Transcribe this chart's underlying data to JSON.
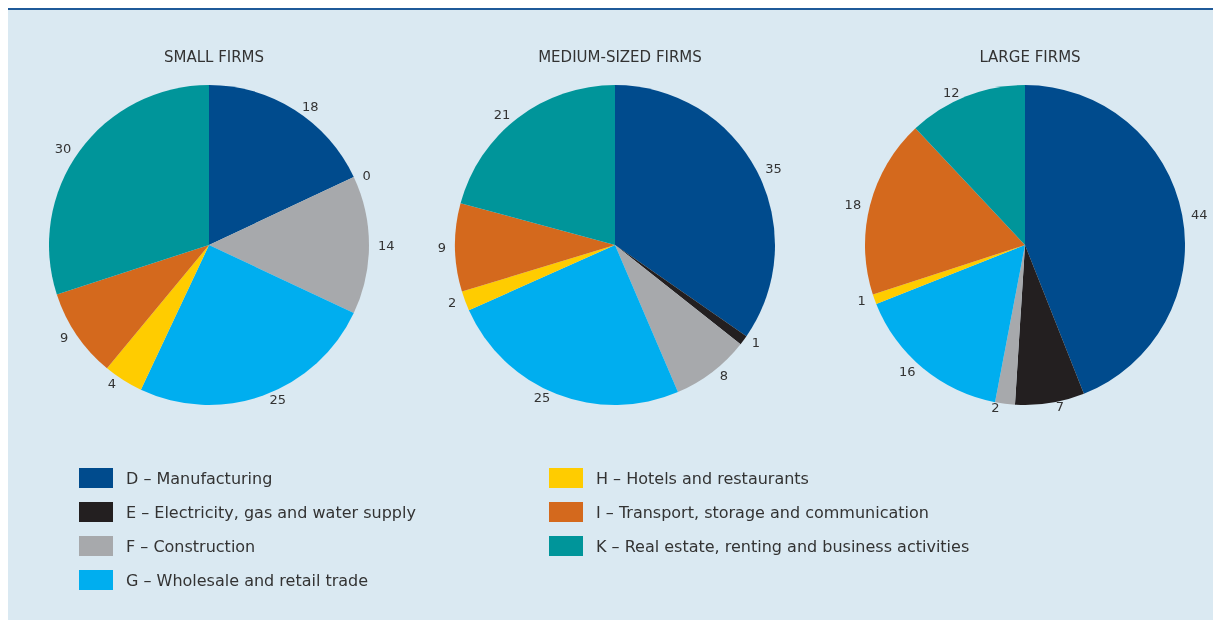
{
  "chart_data": {
    "type": "pie",
    "categories": [
      "D – Manufacturing",
      "E – Electricity, gas and water supply",
      "F – Construction",
      "G – Wholesale and retail trade",
      "H – Hotels and restaurants",
      "I – Transport, storage and communication",
      "K – Real estate, renting and business activities"
    ],
    "colors": [
      "#004b8d",
      "#231f20",
      "#a7a9ac",
      "#00aeef",
      "#ffcc00",
      "#d4691d",
      "#00959a"
    ],
    "legend": "bottom",
    "series": [
      {
        "name": "SMALL FIRMS",
        "values": [
          18,
          0,
          14,
          25,
          4,
          9,
          30
        ],
        "value_labels": [
          "18",
          "0",
          "14",
          "25",
          "4",
          "9",
          "30"
        ]
      },
      {
        "name": "MEDIUM-SIZED FIRMS",
        "values": [
          35,
          1,
          8,
          25,
          2,
          9,
          21
        ],
        "value_labels": [
          "35",
          "1",
          "8",
          "25",
          "2",
          "9",
          "21"
        ]
      },
      {
        "name": "LARGE FIRMS",
        "values": [
          44,
          7,
          2,
          16,
          1,
          18,
          12
        ],
        "value_labels": [
          "44",
          "7",
          "2",
          "16",
          "1",
          "18",
          "12"
        ]
      }
    ]
  }
}
